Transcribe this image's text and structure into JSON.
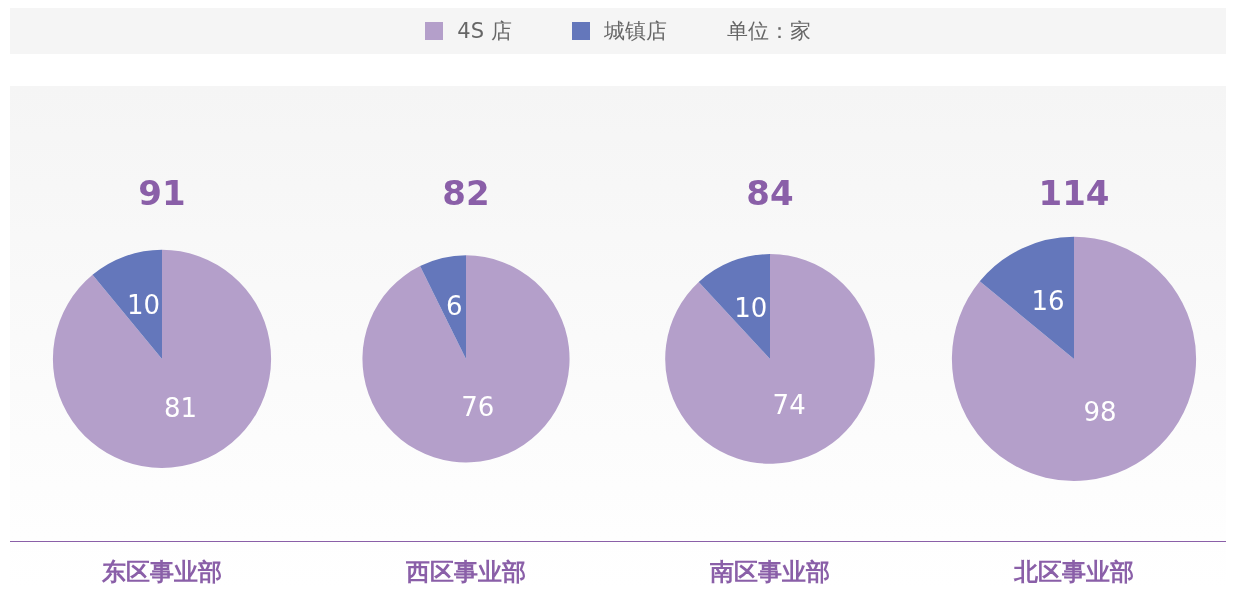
{
  "chart_data": [
    {
      "type": "pie",
      "title": "91",
      "xlabel": "东区事业部",
      "categories": [
        "4S 店",
        "城镇店"
      ],
      "values": [
        81,
        10
      ],
      "colors": [
        "#b49fca",
        "#6477bb"
      ],
      "data_labels": true,
      "legend": "top",
      "annotations": [
        "单位：家"
      ]
    },
    {
      "type": "pie",
      "title": "82",
      "xlabel": "西区事业部",
      "categories": [
        null,
        null
      ],
      "values": [
        76,
        6
      ],
      "colors": [
        "#b49fca",
        "#6477bb"
      ],
      "data_labels": true
    },
    {
      "type": "pie",
      "title": "84",
      "xlabel": "南区事业部",
      "categories": [
        null,
        null
      ],
      "values": [
        74,
        10
      ],
      "colors": [
        "#b49fca",
        "#6477bb"
      ],
      "data_labels": true
    },
    {
      "type": "pie",
      "title": "114",
      "xlabel": "北区事业部",
      "categories": [
        null,
        null
      ],
      "values": [
        98,
        16
      ],
      "colors": [
        "#b49fca",
        "#6477bb"
      ],
      "data_labels": true
    }
  ]
}
